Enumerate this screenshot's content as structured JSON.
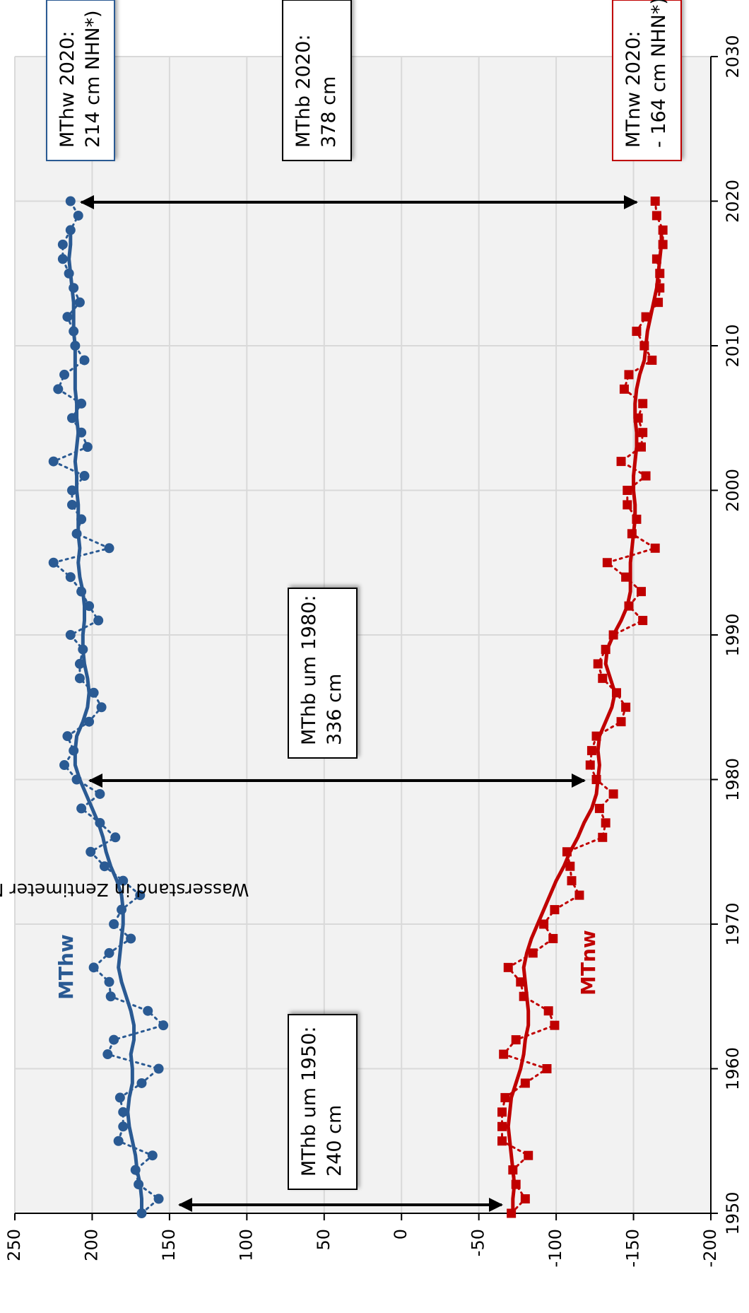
{
  "chart_data": {
    "type": "line",
    "y_label": "Wasserstand in Zentimeter Normalhöhennull (NHN)",
    "x": [
      1950,
      1951,
      1952,
      1953,
      1954,
      1955,
      1956,
      1957,
      1958,
      1959,
      1960,
      1961,
      1962,
      1963,
      1964,
      1965,
      1966,
      1967,
      1968,
      1969,
      1970,
      1971,
      1972,
      1973,
      1974,
      1975,
      1976,
      1977,
      1978,
      1979,
      1980,
      1981,
      1982,
      1983,
      1984,
      1985,
      1986,
      1987,
      1988,
      1989,
      1990,
      1991,
      1992,
      1993,
      1994,
      1995,
      1996,
      1997,
      1998,
      1999,
      2000,
      2001,
      2002,
      2003,
      2004,
      2005,
      2006,
      2007,
      2008,
      2009,
      2010,
      2011,
      2012,
      2013,
      2014,
      2015,
      2016,
      2017,
      2018,
      2019,
      2020
    ],
    "series": [
      {
        "name": "MThw",
        "color": "#2a5a93",
        "style": "dotted",
        "marker": "circle",
        "values": [
          168,
          157,
          170,
          172,
          161,
          183,
          180,
          180,
          182,
          168,
          157,
          190,
          186,
          154,
          164,
          188,
          189,
          199,
          189,
          175,
          186,
          181,
          169,
          180,
          192,
          201,
          185,
          195,
          207,
          195,
          210,
          218,
          212,
          216,
          202,
          194,
          199,
          208,
          208,
          206,
          214,
          196,
          202,
          207,
          214,
          225,
          189,
          210,
          207,
          213,
          213,
          205,
          225,
          203,
          207,
          213,
          207,
          222,
          218,
          205,
          211,
          212,
          216,
          208,
          212,
          215,
          219,
          219,
          214,
          209,
          214
        ]
      },
      {
        "color": "#2a5a93",
        "style": "solid",
        "values": [
          168,
          168,
          169,
          171,
          172,
          174,
          176,
          177,
          176,
          174,
          174,
          175,
          173,
          173,
          175,
          178,
          181,
          183,
          182,
          181,
          180,
          180,
          181,
          184,
          188,
          191,
          193,
          196,
          200,
          204,
          208,
          211,
          211,
          210,
          206,
          203,
          202,
          203,
          205,
          206,
          206,
          205,
          205,
          206,
          208,
          209,
          208,
          209,
          209,
          209,
          210,
          210,
          211,
          210,
          209,
          210,
          210,
          211,
          211,
          211,
          211,
          212,
          212,
          212,
          213,
          214,
          215,
          214,
          214,
          null,
          null
        ]
      },
      {
        "name": "MTnw",
        "color": "#c00000",
        "style": "dotted",
        "marker": "square",
        "values": [
          -71,
          -80,
          -74,
          -72,
          -82,
          -65,
          -65,
          -65,
          -67,
          -80,
          -94,
          -66,
          -74,
          -99,
          -95,
          -79,
          -77,
          -69,
          -85,
          -98,
          -92,
          -99,
          -115,
          -110,
          -109,
          -107,
          -130,
          -132,
          -128,
          -137,
          -126,
          -122,
          -123,
          -126,
          -142,
          -145,
          -139,
          -130,
          -127,
          -132,
          -137,
          -156,
          -147,
          -155,
          -145,
          -133,
          -164,
          -149,
          -152,
          -146,
          -146,
          -158,
          -142,
          -155,
          -156,
          -153,
          -156,
          -144,
          -147,
          -162,
          -157,
          -152,
          -158,
          -166,
          -167,
          -167,
          -165,
          -169,
          -169,
          -165,
          -164
        ]
      },
      {
        "color": "#c00000",
        "style": "solid",
        "values": [
          -72,
          -72,
          -73,
          -72,
          -71,
          -70,
          -69,
          -70,
          -71,
          -74,
          -77,
          -79,
          -80,
          -82,
          -82,
          -81,
          -80,
          -79,
          -81,
          -84,
          -88,
          -92,
          -96,
          -100,
          -105,
          -109,
          -114,
          -118,
          -123,
          -126,
          -127,
          -128,
          -127,
          -128,
          -132,
          -136,
          -138,
          -135,
          -132,
          -133,
          -137,
          -142,
          -146,
          -148,
          -148,
          -148,
          -149,
          -150,
          -151,
          -151,
          -150,
          -150,
          -151,
          -152,
          -152,
          -151,
          -151,
          -152,
          -154,
          -157,
          -158,
          -159,
          -161,
          -163,
          -165,
          -166,
          -167,
          -168,
          -168,
          null,
          null
        ]
      }
    ],
    "xlim": [
      1950,
      2030
    ],
    "xticks": [
      1950,
      1960,
      1970,
      1980,
      1990,
      2000,
      2010,
      2020,
      2030
    ],
    "ylim": [
      -200,
      250
    ],
    "yticks": [
      -200,
      -150,
      -100,
      -50,
      0,
      50,
      100,
      150,
      200,
      250
    ],
    "grid": true,
    "plot_background": "#f2f2f2",
    "annotations": [
      {
        "lines": [
          "MThb um 1950:",
          "240 cm"
        ],
        "color": "#000000"
      },
      {
        "lines": [
          "MThb um 1980:",
          "336 cm"
        ],
        "color": "#000000"
      },
      {
        "lines": [
          "MThb 2020:",
          "378 cm"
        ],
        "color": "#000000"
      },
      {
        "lines": [
          "MThw 2020:",
          "214 cm NHN*)"
        ],
        "color": "#2a5a93"
      },
      {
        "lines": [
          "MTnw 2020:",
          "- 164 cm NHN*)"
        ],
        "color": "#c00000"
      }
    ]
  }
}
